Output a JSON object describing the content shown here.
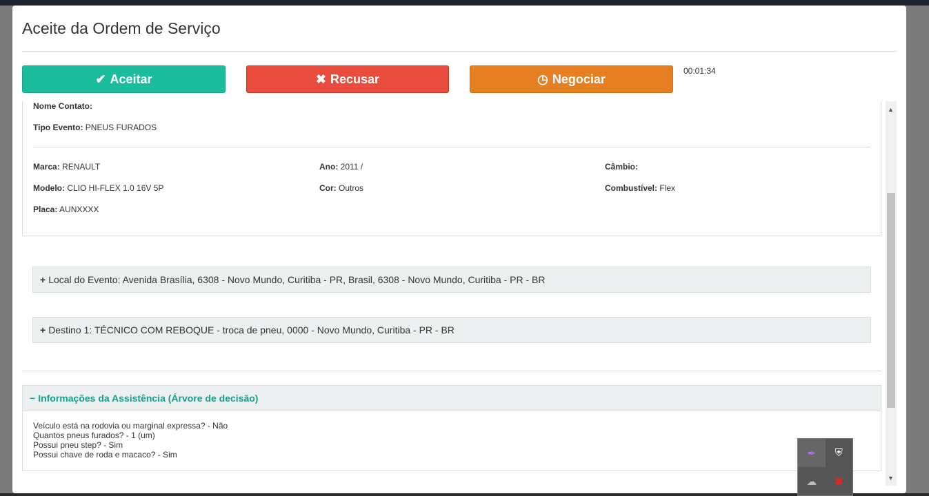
{
  "modal": {
    "title": "Aceite da Ordem de Serviço",
    "timer": "00:01:34"
  },
  "buttons": {
    "accept": "Aceitar",
    "refuse": "Recusar",
    "negotiate": "Negociar"
  },
  "fields": {
    "nome_contato_label": "Nome Contato:",
    "nome_contato": "",
    "tipo_evento_label": "Tipo Evento:",
    "tipo_evento": "PNEUS FURADOS",
    "marca_label": "Marca:",
    "marca": "RENAULT",
    "ano_label": "Ano:",
    "ano": "2011 /",
    "cambio_label": "Câmbio:",
    "cambio": "",
    "modelo_label": "Modelo:",
    "modelo": "CLIO HI-FLEX 1.0 16V 5P",
    "cor_label": "Cor:",
    "cor": "Outros",
    "combustivel_label": "Combustível:",
    "combustivel": "Flex",
    "placa_label": "Placa:",
    "placa": "AUNXXXX"
  },
  "accordions": [
    {
      "label": "Local do Evento: Avenida Brasília, 6308 - Novo Mundo, Curitiba - PR, Brasil, 6308 - Novo Mundo, Curitiba - PR - BR"
    },
    {
      "label": "Destino 1: TÉCNICO COM REBOQUE - troca de pneu, 0000 - Novo Mundo, Curitiba - PR - BR"
    }
  ],
  "assistance": {
    "title": "Informações da Assistência (Árvore de decisão)",
    "lines": [
      "Veículo está na rodovia ou marginal expressa? - Não",
      "Quantos pneus furados? - 1 (um)",
      "Possui pneu step? - Sim",
      "Possui chave de roda e macaco? - Sim"
    ]
  },
  "colors": {
    "accept": "#1abc9c",
    "refuse": "#e74c3c",
    "negotiate": "#e67e22",
    "accent": "#16a085"
  }
}
